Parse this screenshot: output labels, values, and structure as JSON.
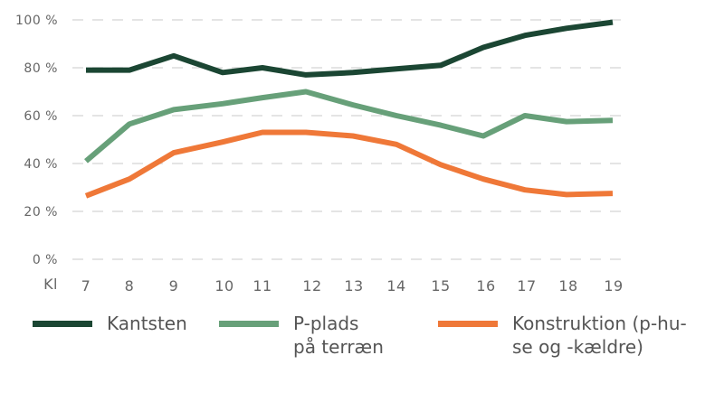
{
  "chart_data": {
    "type": "line",
    "x_prefix": "Kl",
    "x": [
      7,
      8,
      9,
      10,
      11,
      12,
      13,
      14,
      15,
      16,
      17,
      18,
      19
    ],
    "x_tick_labels": [
      "7",
      "8",
      "9",
      "10",
      "11",
      "12",
      "13",
      "14",
      "15",
      "16",
      "17",
      "18",
      "19"
    ],
    "y_tick_labels": [
      "0 %",
      "20 %",
      "40 %",
      "60 %",
      "80 %",
      "100 %"
    ],
    "y_ticks": [
      0,
      20,
      40,
      60,
      80,
      100
    ],
    "ylim": [
      0,
      100
    ],
    "grid": "horizontal dashed",
    "legend_placement": "bottom",
    "series": [
      {
        "name": "Kantsten",
        "color": "#1b4633",
        "values": [
          79,
          79,
          85,
          78,
          80,
          77,
          78,
          79.5,
          81,
          88.5,
          93.5,
          96.5,
          99
        ]
      },
      {
        "name": "P-plads på terræn",
        "legend_lines": [
          "P-plads",
          "på terræn"
        ],
        "color": "#67a079",
        "values": [
          41,
          56.5,
          62.5,
          65,
          67.5,
          70,
          64.5,
          60,
          56,
          51.5,
          60,
          57.5,
          58
        ]
      },
      {
        "name": "Konstruktion (p-huse og -kældre)",
        "legend_lines": [
          "Konstruktion (p-hu-",
          "se og -kældre)"
        ],
        "color": "#ef7838",
        "values": [
          26.5,
          33.5,
          44.5,
          49,
          53,
          53,
          51.5,
          48,
          39.5,
          33.5,
          29,
          27,
          27.5
        ]
      }
    ]
  }
}
